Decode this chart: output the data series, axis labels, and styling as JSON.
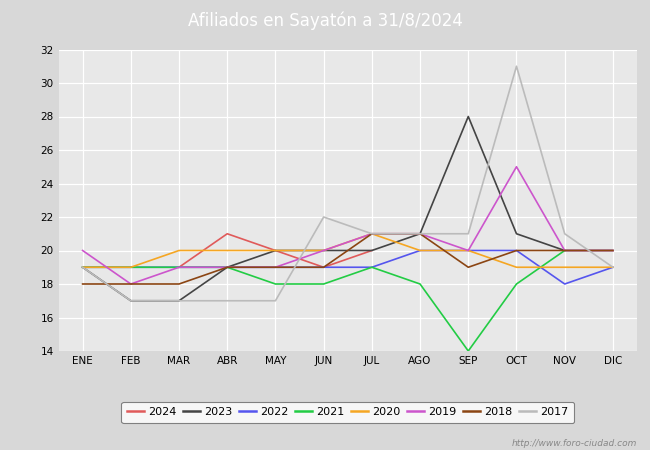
{
  "title": "Afiliados en Sayatón a 31/8/2024",
  "title_bg_color": "#3c7dc4",
  "title_text_color": "#ffffff",
  "months": [
    "ENE",
    "FEB",
    "MAR",
    "ABR",
    "MAY",
    "JUN",
    "JUL",
    "AGO",
    "SEP",
    "OCT",
    "NOV",
    "DIC"
  ],
  "ylim": [
    14,
    32
  ],
  "yticks": [
    14,
    16,
    18,
    20,
    22,
    24,
    26,
    28,
    30,
    32
  ],
  "series": [
    {
      "label": "2024",
      "color": "#e05a5a",
      "data": [
        20,
        null,
        19,
        21,
        20,
        19,
        20,
        null,
        null,
        null,
        null,
        null
      ]
    },
    {
      "label": "2023",
      "color": "#444444",
      "data": [
        19,
        17,
        17,
        19,
        20,
        20,
        20,
        21,
        28,
        21,
        20,
        20
      ]
    },
    {
      "label": "2022",
      "color": "#5555ee",
      "data": [
        19,
        19,
        19,
        19,
        19,
        19,
        19,
        20,
        20,
        20,
        18,
        19
      ]
    },
    {
      "label": "2021",
      "color": "#22cc44",
      "data": [
        19,
        19,
        19,
        19,
        18,
        18,
        19,
        18,
        14,
        18,
        20,
        null
      ]
    },
    {
      "label": "2020",
      "color": "#f5a623",
      "data": [
        19,
        19,
        20,
        20,
        20,
        20,
        21,
        20,
        20,
        19,
        19,
        19
      ]
    },
    {
      "label": "2019",
      "color": "#cc55cc",
      "data": [
        20,
        18,
        19,
        19,
        19,
        20,
        21,
        21,
        20,
        25,
        20,
        20
      ]
    },
    {
      "label": "2018",
      "color": "#8b4513",
      "data": [
        18,
        18,
        18,
        19,
        19,
        19,
        21,
        21,
        19,
        20,
        20,
        20
      ]
    },
    {
      "label": "2017",
      "color": "#bbbbbb",
      "data": [
        19,
        17,
        17,
        17,
        17,
        22,
        21,
        21,
        21,
        31,
        21,
        19
      ]
    }
  ],
  "watermark": "http://www.foro-ciudad.com",
  "background_color": "#d8d8d8",
  "plot_bg_color": "#e8e8e8"
}
